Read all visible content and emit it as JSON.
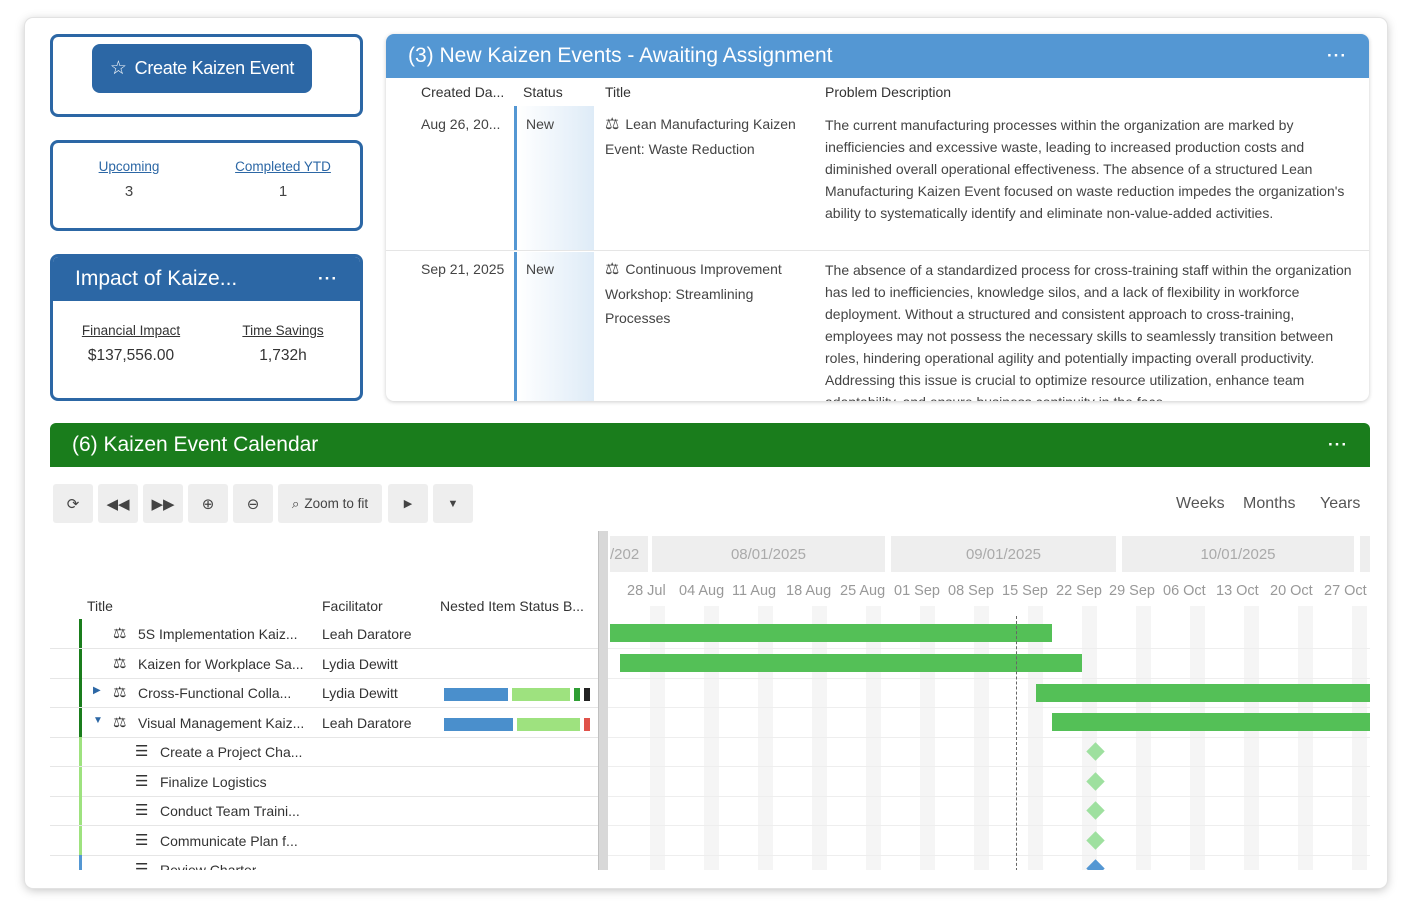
{
  "create": {
    "label": "Create Kaizen Event",
    "icon": "star-icon"
  },
  "stats": {
    "upcoming_label": "Upcoming",
    "upcoming_value": "3",
    "completed_label": "Completed YTD",
    "completed_value": "1"
  },
  "impact": {
    "title": "Impact of Kaize...",
    "menu": "···",
    "financial_label": "Financial Impact",
    "financial_value": "$137,556.00",
    "time_label": "Time Savings",
    "time_value": "1,732h"
  },
  "new_events": {
    "title": "(3) New Kaizen Events - Awaiting Assignment",
    "menu": "···",
    "columns": {
      "created": "Created Da...",
      "status": "Status",
      "title": "Title",
      "description": "Problem Description"
    },
    "rows": [
      {
        "created": "Aug 26, 20...",
        "status": "New",
        "title": "Lean Manufacturing Kaizen Event: Waste Reduction",
        "description": "The current manufacturing processes within the organization are marked by inefficiencies and excessive waste, leading to increased production costs and diminished overall operational effectiveness. The absence of a structured Lean Manufacturing Kaizen Event focused on waste reduction impedes the organization's ability to systematically identify and eliminate non-value-added activities."
      },
      {
        "created": "Sep 21, 2025",
        "status": "New",
        "title": "Continuous Improvement Workshop: Streamlining Processes",
        "description": "The absence of a standardized process for cross-training staff within the organization has led to inefficiencies, knowledge silos, and a lack of flexibility in workforce deployment. Without a structured and consistent approach to cross-training, employees may not possess the necessary skills to seamlessly transition between roles, hindering operational agility and potentially impacting overall productivity. Addressing this issue is crucial to optimize resource utilization, enhance team adaptability, and ensure business continuity in the face"
      }
    ]
  },
  "calendar": {
    "title": "(6) Kaizen Event Calendar",
    "menu": "···",
    "toolbar": {
      "zoom_to_fit": "Zoom to fit"
    },
    "views": [
      "Weeks",
      "Months",
      "Years"
    ],
    "columns": {
      "title": "Title",
      "facilitator": "Facilitator",
      "nested": "Nested Item Status B..."
    },
    "months": [
      "/202",
      "08/01/2025",
      "09/01/2025",
      "10/01/2025"
    ],
    "weeks": [
      "28 Jul",
      "04 Aug",
      "11 Aug",
      "18 Aug",
      "25 Aug",
      "01 Sep",
      "08 Sep",
      "15 Sep",
      "22 Sep",
      "29 Sep",
      "06 Oct",
      "13 Oct",
      "20 Oct",
      "27 Oct"
    ],
    "rows": [
      {
        "title": "5S Implementation Kaiz...",
        "facilitator": "Leah Daratore",
        "kind": "event",
        "expander": ""
      },
      {
        "title": "Kaizen for Workplace Sa...",
        "facilitator": "Lydia Dewitt",
        "kind": "event",
        "expander": ""
      },
      {
        "title": "Cross-Functional Colla...",
        "facilitator": "Lydia Dewitt",
        "kind": "event",
        "expander": "▶"
      },
      {
        "title": "Visual Management Kaiz...",
        "facilitator": "Leah Daratore",
        "kind": "event",
        "expander": "▼"
      },
      {
        "title": "Create a Project Cha...",
        "facilitator": "",
        "kind": "task",
        "expander": ""
      },
      {
        "title": "Finalize Logistics",
        "facilitator": "",
        "kind": "task",
        "expander": ""
      },
      {
        "title": "Conduct Team Traini...",
        "facilitator": "",
        "kind": "task",
        "expander": ""
      },
      {
        "title": "Communicate Plan f...",
        "facilitator": "",
        "kind": "task",
        "expander": ""
      },
      {
        "title": "Review Charter",
        "facilitator": "",
        "kind": "task",
        "expander": ""
      }
    ],
    "colors": {
      "bar": "#54c057",
      "milestone": "#9ee09f",
      "milestone_blue": "#5497d3",
      "nested_blue": "#4a8fcc",
      "nested_green": "#9ee27f",
      "accent": "#1a7d1c"
    }
  }
}
